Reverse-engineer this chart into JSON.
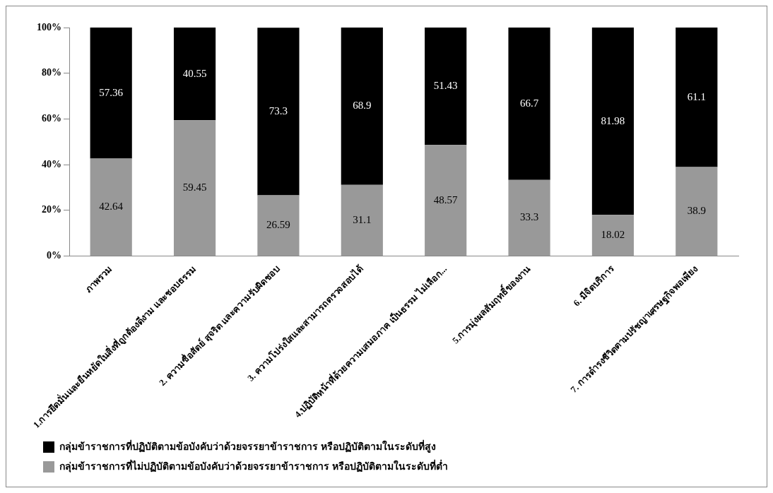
{
  "chart_data": {
    "type": "bar",
    "stacked": true,
    "categories": [
      "ภาพรวม",
      "1.การยึดมั่นและยืนหยัดในสิ่งที่ถูกต้องดีงาม และชอบธรรม",
      "2. ความซื่อสัตย์ สุจริต และความรับผิดชอบ",
      "3. ความโปร่งใสและสามารถตรวจสอบได้",
      "4.ปฏิบัติหน้าที่ด้วยความเสมอภาค เป็นธรรม ไม่เลือก...",
      "5.การมุ่งผลสัมฤทธิ์ของงาน",
      "6. มีจิตบริการ",
      "7. การดำรงชีวิตตามปรัชญาเศรษฐกิจพอเพียง"
    ],
    "series": [
      {
        "name": "กลุ่มข้าราชการที่ไม่ปฏิบัติตามข้อบังคับว่าด้วยจรรยาข้าราชการ หรือปฏิบัติตามในระดับที่ต่ำ",
        "color": "#999999",
        "values": [
          42.64,
          59.45,
          26.59,
          31.1,
          48.57,
          33.3,
          18.02,
          38.9
        ]
      },
      {
        "name": "กลุ่มข้าราชการที่ปฏิบัติตามข้อบังคับว่าด้วยจรรยาข้าราชการ หรือปฏิบัติตามในระดับที่สูง",
        "color": "#000000",
        "values": [
          57.36,
          40.55,
          73.3,
          68.9,
          51.43,
          66.7,
          81.98,
          61.1
        ]
      }
    ],
    "ylim": [
      0,
      100
    ],
    "yticks": [
      {
        "value": 0,
        "label": "0%"
      },
      {
        "value": 20,
        "label": "20%"
      },
      {
        "value": 40,
        "label": "40%"
      },
      {
        "value": 60,
        "label": "60%"
      },
      {
        "value": 80,
        "label": "80%"
      },
      {
        "value": 100,
        "label": "100%"
      }
    ],
    "grid": false,
    "legend": "bottom",
    "data_labels": true
  }
}
